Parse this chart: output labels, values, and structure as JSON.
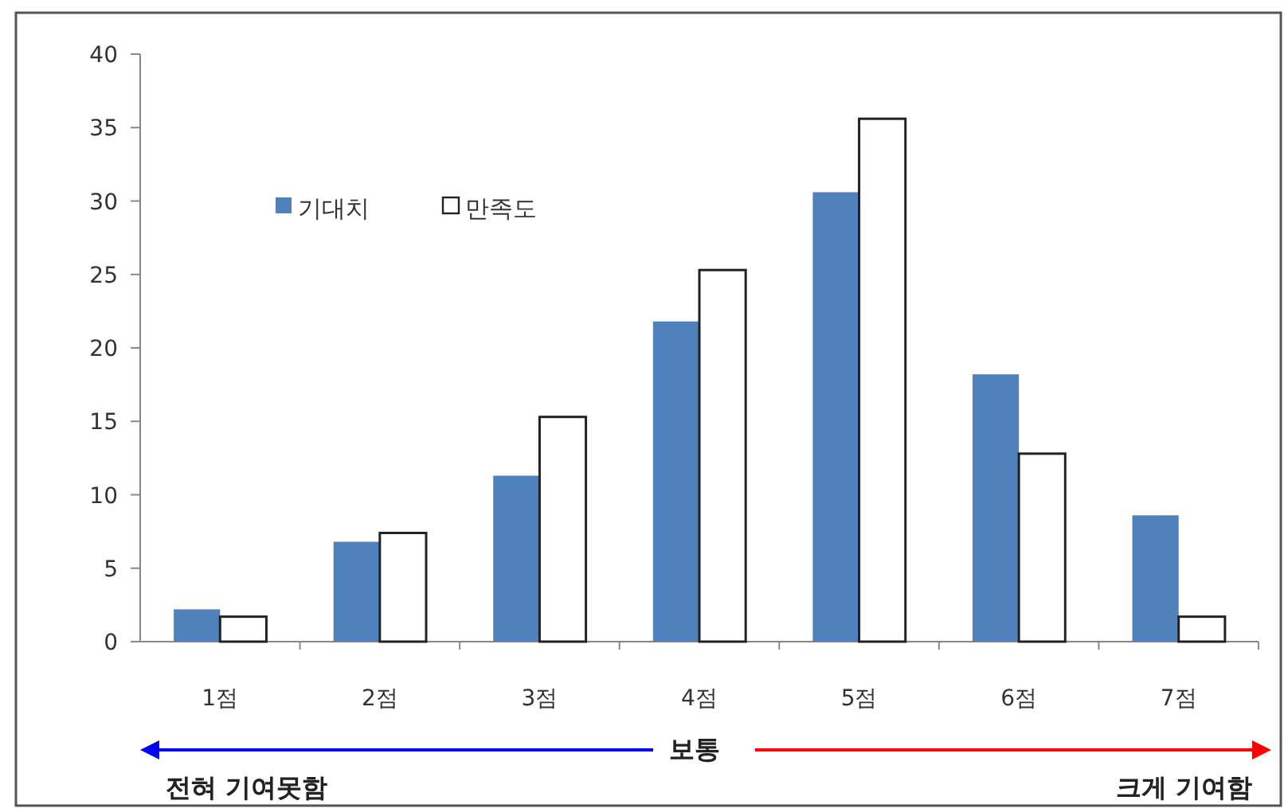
{
  "chart_data": {
    "type": "bar",
    "categories": [
      "1점",
      "2점",
      "3점",
      "4점",
      "5점",
      "6점",
      "7점"
    ],
    "series": [
      {
        "name": "기대치",
        "color": "#4f81bd",
        "values": [
          2.2,
          6.8,
          11.3,
          21.8,
          30.6,
          18.2,
          8.6
        ]
      },
      {
        "name": "만족도",
        "color": "#ffffff",
        "values": [
          1.7,
          7.4,
          15.3,
          25.3,
          35.6,
          12.8,
          1.7
        ]
      }
    ],
    "ylim": [
      0,
      40
    ],
    "yticks": [
      0,
      5,
      10,
      15,
      20,
      25,
      30,
      35,
      40
    ],
    "grid": false,
    "legend": "top left",
    "annotations": [
      "보통",
      "전혀 기여못함",
      "크게 기여함"
    ]
  }
}
